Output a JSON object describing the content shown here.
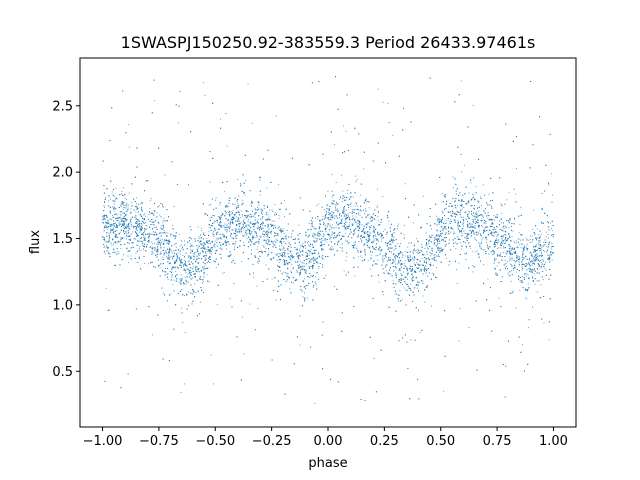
{
  "chart_data": {
    "type": "scatter",
    "title": "1SWASPJ150250.92-383559.3 Period 26433.97461s",
    "xlabel": "phase",
    "ylabel": "flux",
    "xlim": [
      -1.1,
      1.1
    ],
    "ylim": [
      0.08,
      2.86
    ],
    "x_ticks": [
      -1.0,
      -0.75,
      -0.5,
      -0.25,
      0.0,
      0.25,
      0.5,
      0.75,
      1.0
    ],
    "x_tick_labels": [
      "−1.00",
      "−0.75",
      "−0.50",
      "−0.25",
      "0.00",
      "0.25",
      "0.50",
      "0.75",
      "1.00"
    ],
    "y_ticks": [
      0.5,
      1.0,
      1.5,
      2.0,
      2.5
    ],
    "y_tick_labels": [
      "0.5",
      "1.0",
      "1.5",
      "2.0",
      "2.5"
    ],
    "grid": false,
    "legend": "none",
    "marker_color": "#1f77b4",
    "series": [
      {
        "phase_range": [
          -1.0,
          1.0
        ],
        "points": [
          [
            -1.0,
            1.56
          ],
          [
            -0.95,
            1.6
          ],
          [
            -0.9,
            1.62
          ],
          [
            -0.85,
            1.6
          ],
          [
            -0.8,
            1.56
          ],
          [
            -0.75,
            1.48
          ],
          [
            -0.7,
            1.38
          ],
          [
            -0.65,
            1.3
          ],
          [
            -0.6,
            1.28
          ],
          [
            -0.55,
            1.38
          ],
          [
            -0.5,
            1.52
          ],
          [
            -0.45,
            1.6
          ],
          [
            -0.4,
            1.62
          ],
          [
            -0.35,
            1.6
          ],
          [
            -0.3,
            1.56
          ],
          [
            -0.25,
            1.5
          ],
          [
            -0.2,
            1.42
          ],
          [
            -0.15,
            1.33
          ],
          [
            -0.1,
            1.32
          ],
          [
            -0.05,
            1.45
          ],
          [
            0.0,
            1.58
          ],
          [
            0.05,
            1.63
          ],
          [
            0.1,
            1.62
          ],
          [
            0.15,
            1.58
          ],
          [
            0.2,
            1.53
          ],
          [
            0.25,
            1.45
          ],
          [
            0.3,
            1.36
          ],
          [
            0.35,
            1.3
          ],
          [
            0.4,
            1.29
          ],
          [
            0.45,
            1.38
          ],
          [
            0.5,
            1.52
          ],
          [
            0.55,
            1.6
          ],
          [
            0.6,
            1.62
          ],
          [
            0.65,
            1.61
          ],
          [
            0.7,
            1.57
          ],
          [
            0.75,
            1.5
          ],
          [
            0.8,
            1.42
          ],
          [
            0.85,
            1.34
          ],
          [
            0.9,
            1.31
          ],
          [
            0.95,
            1.4
          ],
          [
            1.0,
            1.5
          ]
        ],
        "scatter_sigma": 0.12,
        "outlier_range": [
          0.25,
          2.75
        ]
      }
    ]
  }
}
